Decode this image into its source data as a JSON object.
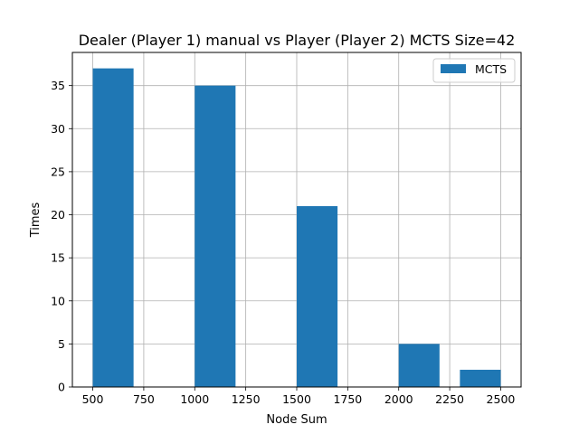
{
  "chart_data": {
    "type": "bar",
    "title": "Dealer (Player 1) manual vs Player (Player 2) MCTS Size=42",
    "xlabel": "Node Sum",
    "ylabel": "Times",
    "xlim": [
      400,
      2600
    ],
    "ylim": [
      0,
      38.85
    ],
    "xticks": [
      500,
      750,
      1000,
      1250,
      1500,
      1750,
      2000,
      2250,
      2500
    ],
    "yticks": [
      0,
      5,
      10,
      15,
      20,
      25,
      30,
      35
    ],
    "grid": true,
    "legend": "top-right",
    "series": [
      {
        "name": "MCTS",
        "color": "#1f77b4",
        "bars": [
          {
            "x0": 500,
            "x1": 700,
            "value": 37
          },
          {
            "x0": 1000,
            "x1": 1200,
            "value": 35
          },
          {
            "x0": 1500,
            "x1": 1700,
            "value": 21
          },
          {
            "x0": 2000,
            "x1": 2200,
            "value": 5
          },
          {
            "x0": 2300,
            "x1": 2500,
            "value": 2
          }
        ]
      }
    ]
  }
}
